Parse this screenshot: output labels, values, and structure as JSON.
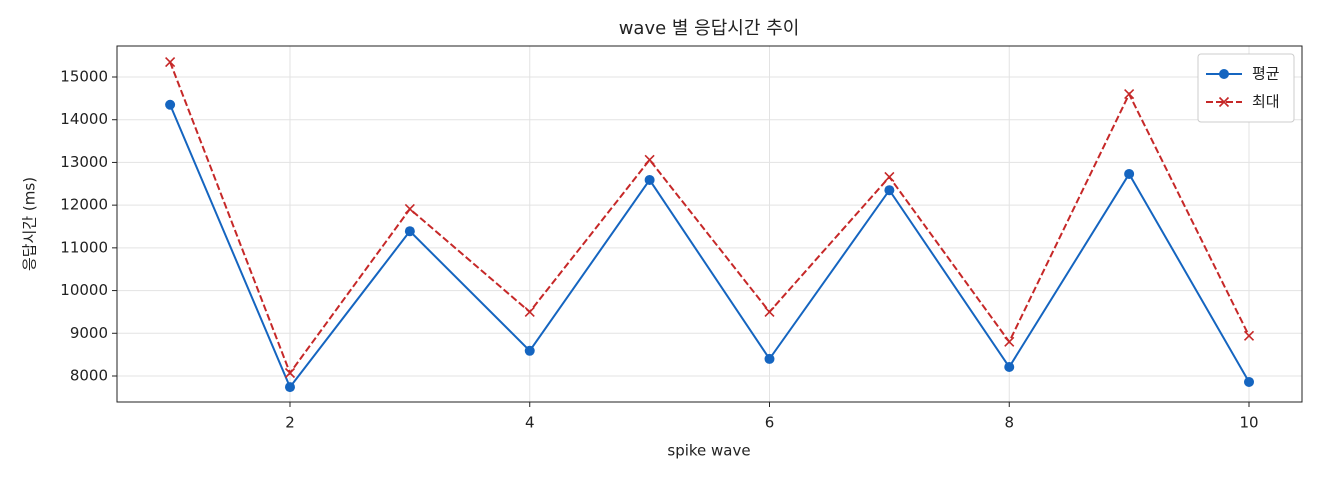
{
  "chart_data": {
    "type": "line",
    "title": "wave 별 응답시간 추이",
    "x_label": "spike wave",
    "y_label": "응답시간 (ms)",
    "x": [
      1,
      2,
      3,
      4,
      5,
      6,
      7,
      8,
      9,
      10
    ],
    "series": [
      {
        "name": "평균",
        "color": "#1565c0",
        "marker": "circle",
        "linestyle": "solid",
        "values": [
          14350,
          7740,
          11390,
          8590,
          12590,
          8400,
          12350,
          8210,
          12730,
          7860
        ]
      },
      {
        "name": "최대",
        "color": "#c62828",
        "marker": "x",
        "linestyle": "dashed",
        "values": [
          15350,
          8070,
          11910,
          9500,
          13060,
          9500,
          12660,
          8800,
          14600,
          8940
        ]
      }
    ],
    "xlim": [
      0.557,
      10.442
    ],
    "xticks": [
      2,
      4,
      6,
      8,
      10
    ],
    "ylim": [
      7391,
      15726
    ],
    "yticks": [
      8000,
      9000,
      10000,
      11000,
      12000,
      13000,
      14000,
      15000
    ],
    "grid": true,
    "legend": "upper right"
  }
}
